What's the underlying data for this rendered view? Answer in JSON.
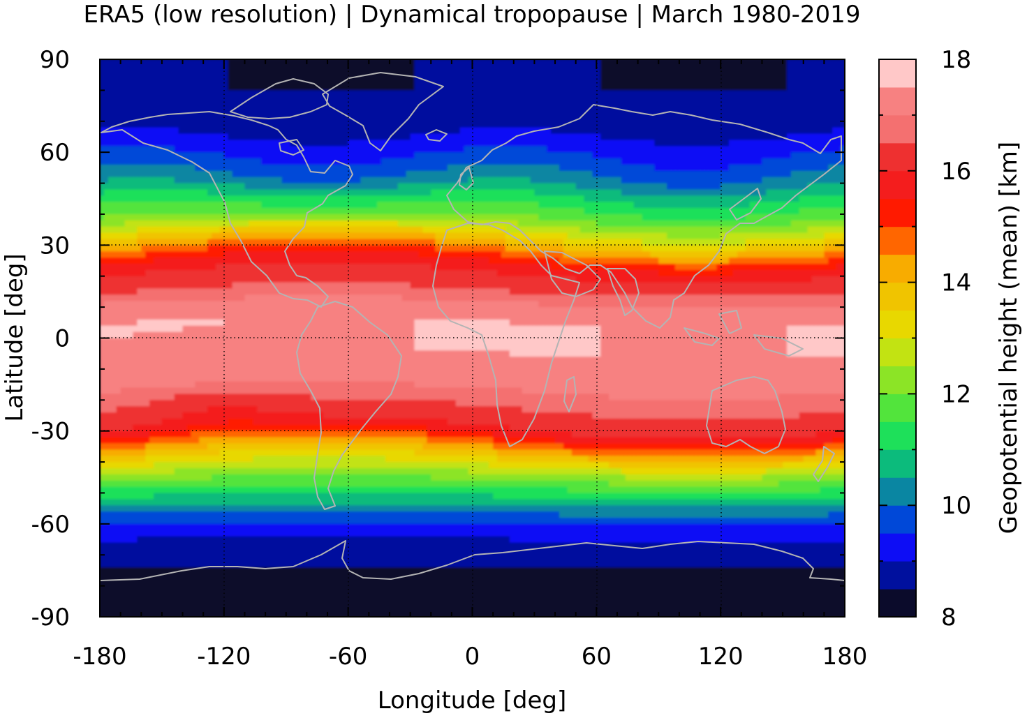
{
  "chart_data": {
    "type": "heatmap",
    "title": "ERA5 (low resolution) | Dynamical tropopause | March 1980-2019",
    "xlabel": "Longitude [deg]",
    "ylabel": "Latitude [deg]",
    "xlim": [
      -180,
      180
    ],
    "ylim": [
      -90,
      90
    ],
    "x_ticks": [
      "-180",
      "-120",
      "-60",
      "0",
      "60",
      "120",
      "180"
    ],
    "y_ticks": [
      "90",
      "60",
      "30",
      "0",
      "-30",
      "-60",
      "-90"
    ],
    "grid": "dotted at 60° longitude and 30° latitude",
    "colorbar": {
      "label": "Geopotential height (mean) [km]",
      "range": [
        8,
        18
      ],
      "step": 0.5,
      "ticks": [
        "18",
        "16",
        "14",
        "12",
        "10",
        "8"
      ],
      "colors": [
        "#0b0b2b",
        "#00109e",
        "#0d0df5",
        "#0048d8",
        "#0a86a2",
        "#0cbb7c",
        "#1ee05a",
        "#52e43c",
        "#8ce426",
        "#c2e312",
        "#e8d800",
        "#f0c400",
        "#f8ac00",
        "#ff6600",
        "#ff1a00",
        "#f41d1d",
        "#ee3030",
        "#f47070",
        "#f78181",
        "#ffc8c8"
      ]
    },
    "zonal_profile": {
      "latitude": [
        -90,
        -80,
        -70,
        -65,
        -60,
        -55,
        -50,
        -45,
        -40,
        -35,
        -30,
        -25,
        -20,
        -15,
        -10,
        -5,
        0,
        5,
        10,
        15,
        20,
        25,
        30,
        35,
        40,
        45,
        50,
        55,
        60,
        65,
        70,
        75,
        80,
        90
      ],
      "height_km": [
        8.2,
        8.2,
        8.7,
        9.0,
        9.5,
        10.3,
        11.2,
        12.2,
        13.3,
        14.6,
        15.9,
        16.4,
        16.6,
        17.2,
        17.4,
        17.5,
        17.5,
        17.5,
        17.2,
        16.5,
        16.1,
        15.4,
        14.2,
        12.9,
        11.8,
        11.1,
        10.3,
        9.8,
        9.4,
        9.0,
        8.8,
        8.6,
        8.5,
        8.5
      ]
    },
    "coastline_color": "#b4b4b4"
  }
}
